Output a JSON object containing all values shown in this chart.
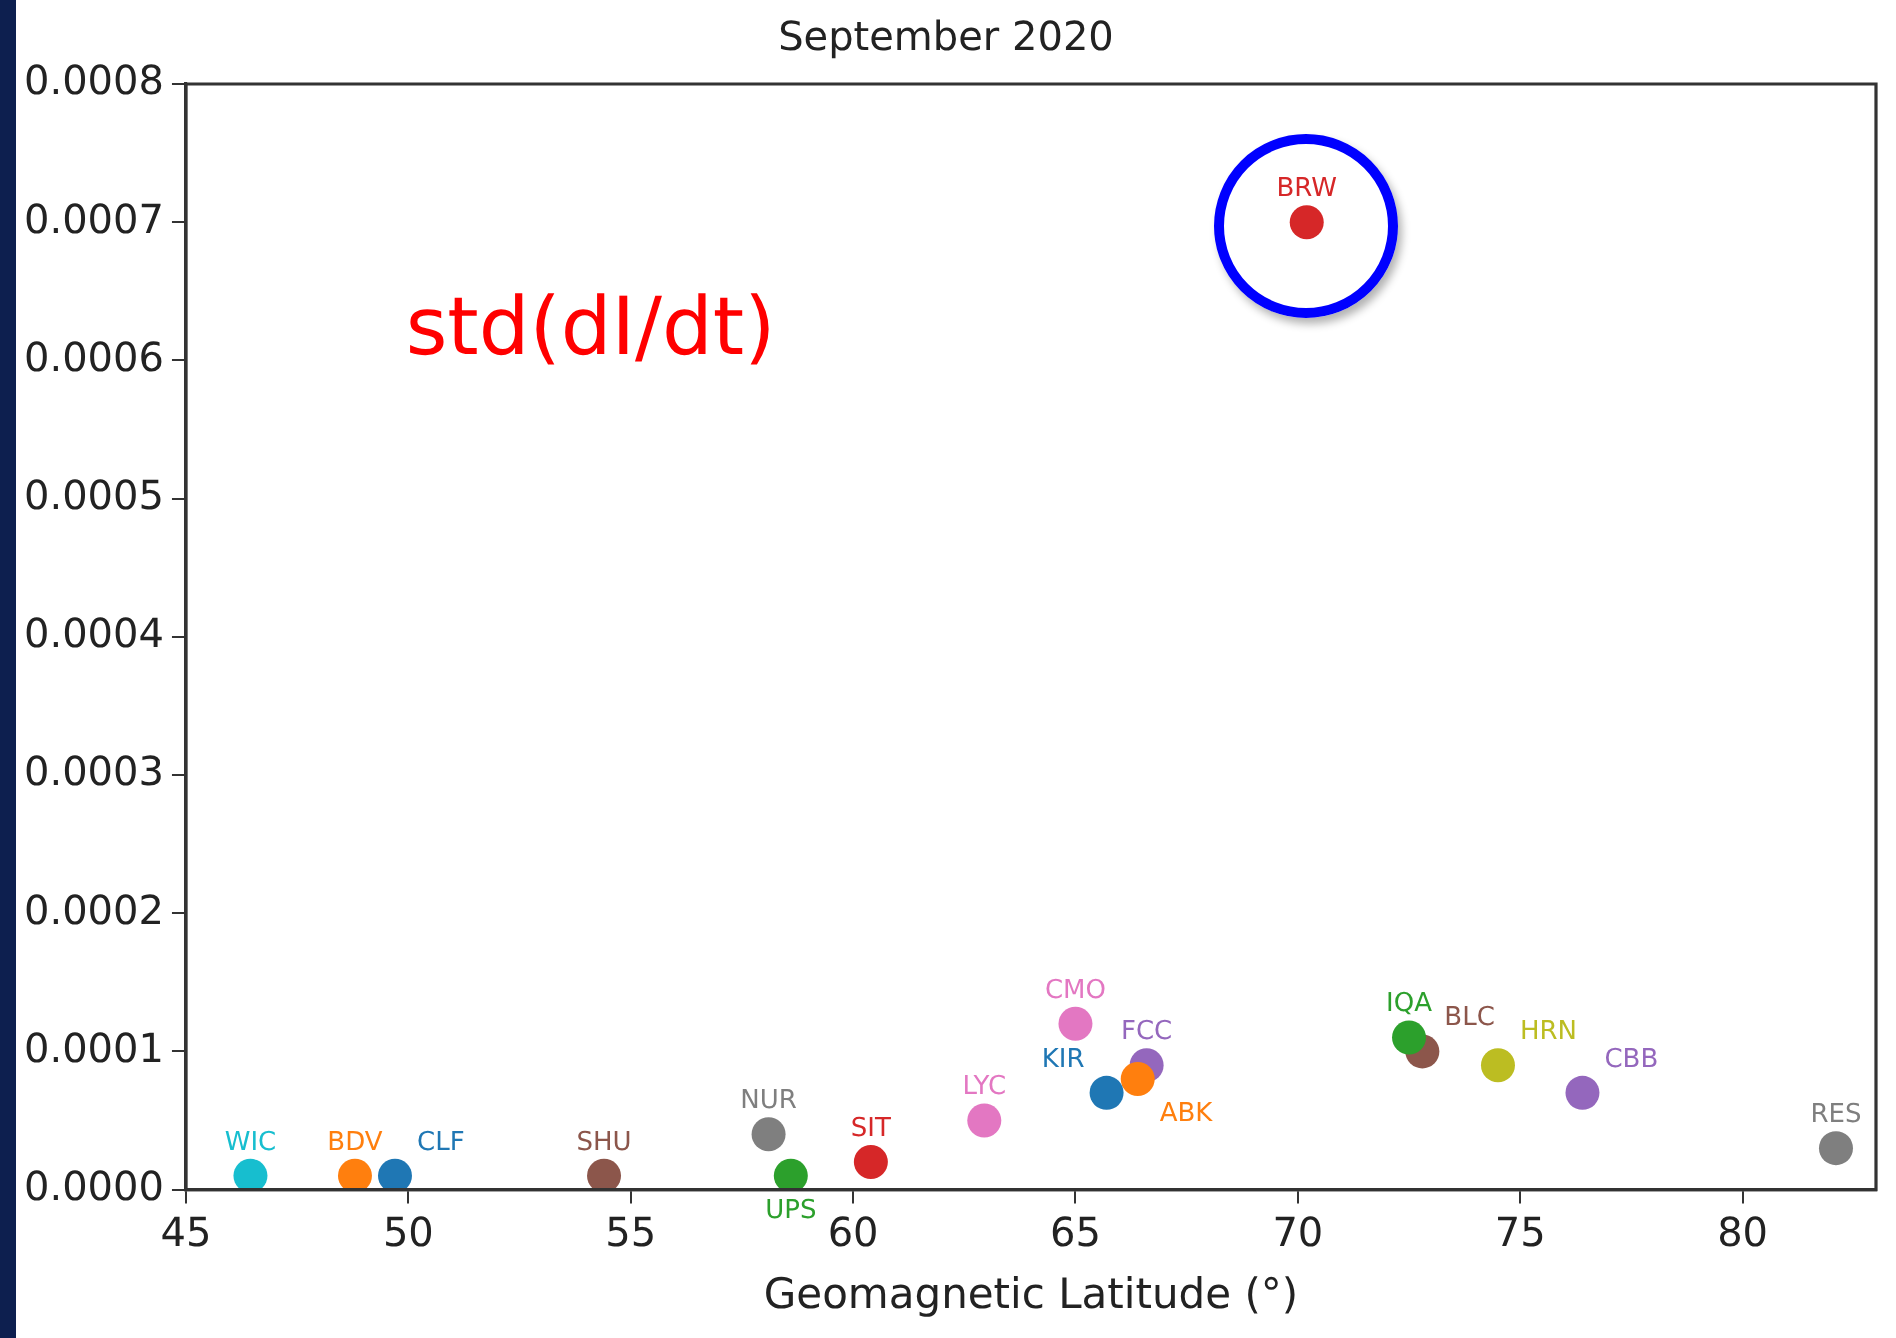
{
  "chart_data": {
    "type": "scatter",
    "title": "September 2020",
    "xlabel": "Geomagnetic Latitude (°)",
    "annotations": [
      "std(dI/dt)"
    ],
    "marker": "circle",
    "xlim": [
      45,
      83
    ],
    "xticks": [
      45,
      50,
      55,
      60,
      65,
      70,
      75,
      80
    ],
    "ylim": [
      0,
      0.0008
    ],
    "yticks": [
      {
        "value": 0,
        "label": "0.0000"
      },
      {
        "value": 0.0001,
        "label": "0.0001"
      },
      {
        "value": 0.0002,
        "label": "0.0002"
      },
      {
        "value": 0.0003,
        "label": "0.0003"
      },
      {
        "value": 0.0004,
        "label": "0.0004"
      },
      {
        "value": 0.0005,
        "label": "0.0005"
      },
      {
        "value": 0.0006,
        "label": "0.0006"
      },
      {
        "value": 0.0007,
        "label": "0.0007"
      },
      {
        "value": 0.0008,
        "label": "0.0008"
      }
    ],
    "series": [
      {
        "name": "WIC",
        "color": "#17becf",
        "x": [
          46.45
        ],
        "values": [
          1e-05
        ]
      },
      {
        "name": "BDV",
        "color": "#ff7f0e",
        "x": [
          48.8
        ],
        "values": [
          1e-05
        ]
      },
      {
        "name": "CLF",
        "color": "#1f77b4",
        "x": [
          49.7
        ],
        "values": [
          1e-05
        ]
      },
      {
        "name": "SHU",
        "color": "#8c564b",
        "x": [
          54.4
        ],
        "values": [
          1e-05
        ]
      },
      {
        "name": "NUR",
        "color": "#7f7f7f",
        "x": [
          58.1
        ],
        "values": [
          4e-05
        ]
      },
      {
        "name": "UPS",
        "color": "#2ca02c",
        "x": [
          58.6
        ],
        "values": [
          1e-05
        ]
      },
      {
        "name": "SIT",
        "color": "#d62728",
        "x": [
          60.4
        ],
        "values": [
          2e-05
        ]
      },
      {
        "name": "LYC",
        "color": "#e377c2",
        "x": [
          62.95
        ],
        "values": [
          5e-05
        ]
      },
      {
        "name": "CMO",
        "color": "#e377c2",
        "x": [
          65.0
        ],
        "values": [
          0.00012
        ]
      },
      {
        "name": "KIR",
        "color": "#1f77b4",
        "x": [
          65.7
        ],
        "values": [
          7e-05
        ]
      },
      {
        "name": "ABK",
        "color": "#ff7f0e",
        "x": [
          66.4
        ],
        "values": [
          8e-05
        ]
      },
      {
        "name": "FCC",
        "color": "#9467bd",
        "x": [
          66.6
        ],
        "values": [
          9e-05
        ]
      },
      {
        "name": "BRW",
        "color": "#d62728",
        "x": [
          70.2
        ],
        "values": [
          0.0007
        ]
      },
      {
        "name": "IQA",
        "color": "#2ca02c",
        "x": [
          72.5
        ],
        "values": [
          0.00011
        ]
      },
      {
        "name": "BLC",
        "color": "#8c564b",
        "x": [
          72.8
        ],
        "values": [
          0.0001
        ]
      },
      {
        "name": "HRN",
        "color": "#bcbd22",
        "x": [
          74.5
        ],
        "values": [
          9e-05
        ]
      },
      {
        "name": "CBB",
        "color": "#9467bd",
        "x": [
          76.4
        ],
        "values": [
          7e-05
        ]
      },
      {
        "name": "RES",
        "color": "#7f7f7f",
        "x": [
          82.1
        ],
        "values": [
          3e-05
        ]
      }
    ]
  }
}
